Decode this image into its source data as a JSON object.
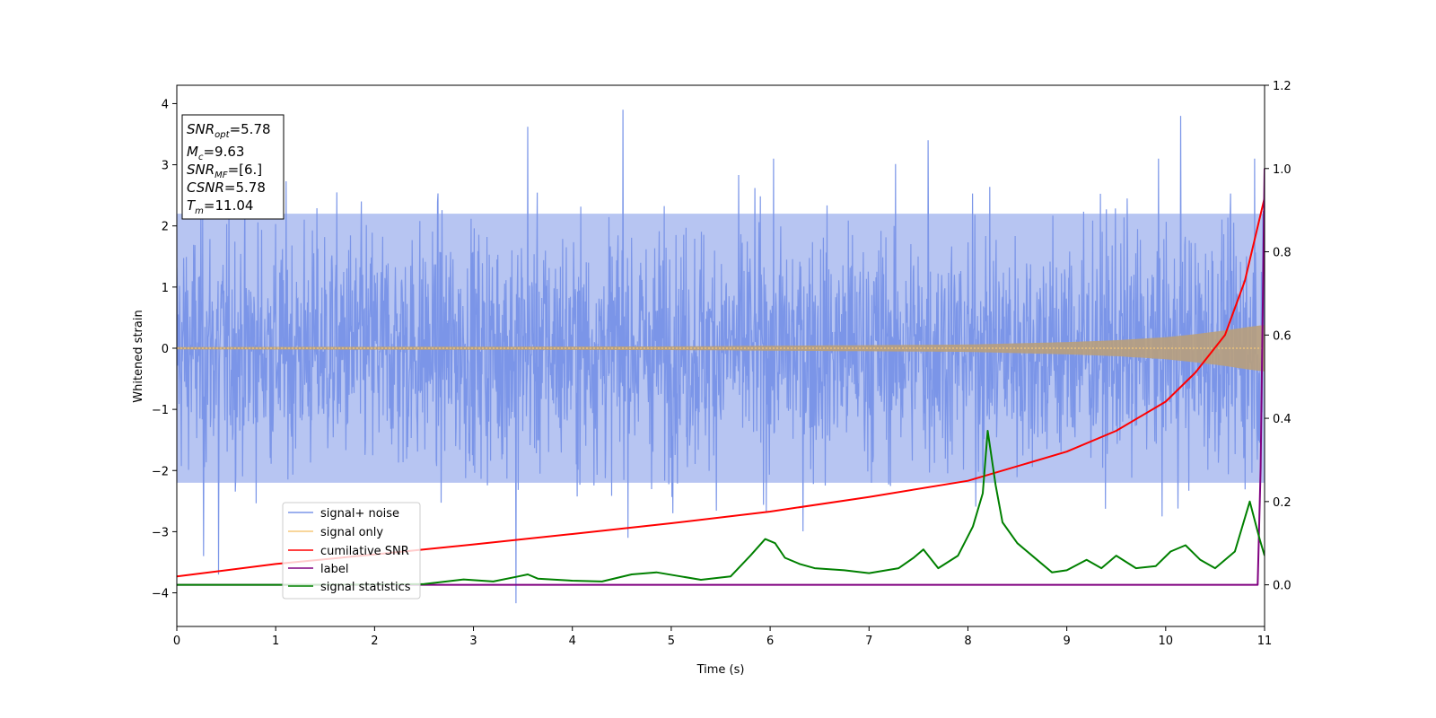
{
  "chart_data": {
    "type": "line",
    "xlabel": "Time (s)",
    "ylabel": "Whitened strain",
    "xlim": [
      0,
      11
    ],
    "ylim": [
      -4.55,
      4.3
    ],
    "y2lim": [
      -0.1,
      1.2
    ],
    "x_ticks": [
      "0",
      "1",
      "2",
      "3",
      "4",
      "5",
      "6",
      "7",
      "8",
      "9",
      "10",
      "11"
    ],
    "y_ticks": [
      "4",
      "3",
      "2",
      "1",
      "0",
      "−1",
      "−2",
      "−3",
      "−4"
    ],
    "y2_ticks": [
      "1.2",
      "1.0",
      "0.8",
      "0.6",
      "0.4",
      "0.2",
      "0.0"
    ],
    "grid": false,
    "legend_position": "lower-left",
    "annotation": {
      "lines": [
        {
          "name": "SNR",
          "sub": "opt",
          "value": "=5.78"
        },
        {
          "name": "M",
          "sub": "c",
          "value": "=9.63"
        },
        {
          "name": "SNR",
          "sub": "MF",
          "value": "=[6.]"
        },
        {
          "name": "CSNR",
          "sub": "",
          "value": "=5.78"
        },
        {
          "name": "T",
          "sub": "m",
          "value": "=11.04"
        }
      ]
    },
    "series": [
      {
        "name": "signal+ noise",
        "color": "#7b96e8",
        "axis": "left",
        "kind": "noise band",
        "band_low": -2.2,
        "band_high": 2.2,
        "extremes": [
          [
            3.43,
            -4.17
          ],
          [
            3.55,
            3.62
          ],
          [
            4.51,
            3.9
          ],
          [
            10.15,
            3.8
          ],
          [
            10.9,
            3.1
          ],
          [
            0.27,
            -3.4
          ],
          [
            0.42,
            -3.7
          ],
          [
            7.6,
            3.4
          ]
        ]
      },
      {
        "name": "signal only",
        "color": "#f5c87a",
        "fill_color": "#b89e7c",
        "axis": "left",
        "kind": "chirp envelope",
        "envelope": [
          [
            0,
            0.02
          ],
          [
            5,
            0.03
          ],
          [
            8,
            0.06
          ],
          [
            9,
            0.1
          ],
          [
            9.5,
            0.13
          ],
          [
            10,
            0.18
          ],
          [
            10.3,
            0.23
          ],
          [
            10.6,
            0.29
          ],
          [
            10.8,
            0.34
          ],
          [
            11,
            0.38
          ]
        ]
      },
      {
        "name": "cumilative SNR",
        "color": "#ff0000",
        "axis": "right",
        "points": [
          [
            0,
            0.02
          ],
          [
            1,
            0.05
          ],
          [
            2,
            0.073
          ],
          [
            3,
            0.097
          ],
          [
            4,
            0.122
          ],
          [
            5,
            0.148
          ],
          [
            6,
            0.176
          ],
          [
            7,
            0.211
          ],
          [
            8,
            0.25
          ],
          [
            9,
            0.32
          ],
          [
            9.5,
            0.37
          ],
          [
            10,
            0.44
          ],
          [
            10.3,
            0.51
          ],
          [
            10.6,
            0.6
          ],
          [
            10.8,
            0.73
          ],
          [
            11,
            0.93
          ]
        ]
      },
      {
        "name": "label",
        "color": "#800080",
        "axis": "right",
        "points": [
          [
            0,
            0.0
          ],
          [
            10.93,
            0.0
          ],
          [
            10.96,
            0.28
          ],
          [
            11.0,
            1.0
          ]
        ]
      },
      {
        "name": "signal statistics",
        "color": "#008000",
        "axis": "right",
        "points": [
          [
            0,
            0.0
          ],
          [
            1,
            0.0
          ],
          [
            2,
            0.001
          ],
          [
            2.5,
            0.002
          ],
          [
            2.9,
            0.013
          ],
          [
            3.2,
            0.008
          ],
          [
            3.45,
            0.02
          ],
          [
            3.55,
            0.025
          ],
          [
            3.65,
            0.015
          ],
          [
            4.0,
            0.01
          ],
          [
            4.3,
            0.008
          ],
          [
            4.6,
            0.025
          ],
          [
            4.85,
            0.03
          ],
          [
            5.1,
            0.02
          ],
          [
            5.3,
            0.012
          ],
          [
            5.6,
            0.02
          ],
          [
            5.8,
            0.07
          ],
          [
            5.95,
            0.11
          ],
          [
            6.05,
            0.1
          ],
          [
            6.15,
            0.065
          ],
          [
            6.3,
            0.05
          ],
          [
            6.45,
            0.04
          ],
          [
            6.75,
            0.035
          ],
          [
            7.0,
            0.028
          ],
          [
            7.3,
            0.04
          ],
          [
            7.45,
            0.065
          ],
          [
            7.55,
            0.085
          ],
          [
            7.7,
            0.04
          ],
          [
            7.9,
            0.07
          ],
          [
            8.05,
            0.14
          ],
          [
            8.15,
            0.22
          ],
          [
            8.2,
            0.37
          ],
          [
            8.28,
            0.24
          ],
          [
            8.35,
            0.15
          ],
          [
            8.5,
            0.1
          ],
          [
            8.7,
            0.06
          ],
          [
            8.85,
            0.03
          ],
          [
            9.0,
            0.035
          ],
          [
            9.2,
            0.06
          ],
          [
            9.35,
            0.04
          ],
          [
            9.5,
            0.07
          ],
          [
            9.7,
            0.04
          ],
          [
            9.9,
            0.045
          ],
          [
            10.05,
            0.08
          ],
          [
            10.2,
            0.095
          ],
          [
            10.35,
            0.06
          ],
          [
            10.5,
            0.04
          ],
          [
            10.7,
            0.08
          ],
          [
            10.85,
            0.2
          ],
          [
            10.95,
            0.11
          ],
          [
            11,
            0.07
          ]
        ]
      }
    ]
  }
}
